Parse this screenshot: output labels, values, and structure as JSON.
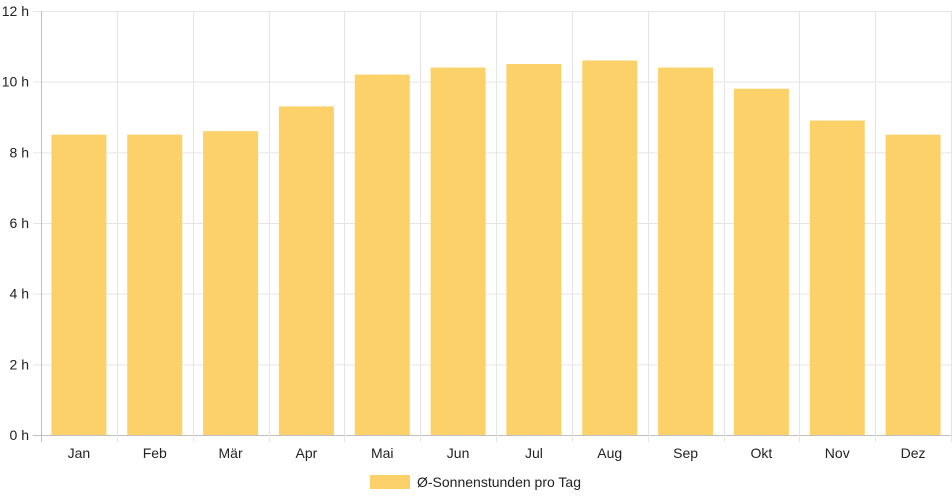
{
  "chart_data": {
    "type": "bar",
    "categories": [
      "Jan",
      "Feb",
      "Mär",
      "Apr",
      "Mai",
      "Jun",
      "Jul",
      "Aug",
      "Sep",
      "Okt",
      "Nov",
      "Dez"
    ],
    "series": [
      {
        "name": "Ø-Sonnenstunden pro Tag",
        "color": "#fdd16a",
        "values": [
          8.5,
          8.5,
          8.6,
          9.3,
          10.2,
          10.4,
          10.5,
          10.6,
          10.4,
          9.8,
          8.9,
          8.5
        ]
      }
    ],
    "ylim": [
      0,
      12
    ],
    "yticks": [
      0,
      2,
      4,
      6,
      8,
      10,
      12
    ],
    "ytick_suffix": " h",
    "ytick_labels": [
      "0 h",
      "2 h",
      "4 h",
      "6 h",
      "8 h",
      "10 h",
      "12 h"
    ],
    "grid": true,
    "legend_position": "bottom",
    "title": "",
    "xlabel": "",
    "ylabel": ""
  },
  "legend": {
    "label": "Ø-Sonnenstunden pro Tag"
  }
}
